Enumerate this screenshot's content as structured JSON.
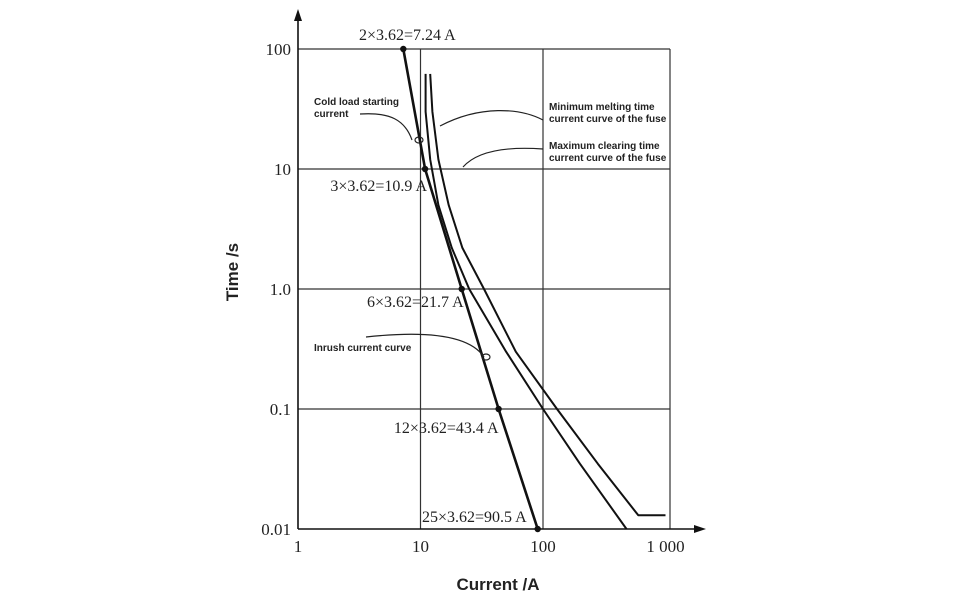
{
  "chart_data": {
    "type": "line",
    "xlabel": "Current /A",
    "ylabel": "Time /s",
    "x_scale": "log",
    "y_scale": "log",
    "xlim": [
      1,
      1000
    ],
    "ylim": [
      0.01,
      100
    ],
    "grid": true,
    "x_ticks": [
      "1",
      "10",
      "100",
      "1 000"
    ],
    "y_ticks": [
      "100",
      "10",
      "1.0",
      "0.1",
      "0.01"
    ],
    "series": [
      {
        "name": "Inrush current curve",
        "x": [
          7.24,
          10.9,
          21.7,
          43.4,
          90.5
        ],
        "y": [
          100,
          10,
          1.0,
          0.1,
          0.01
        ]
      },
      {
        "name": "Minimum melting time current curve of the fuse",
        "x": [
          11,
          11,
          12,
          14,
          18,
          25,
          50,
          100,
          200,
          480
        ],
        "y": [
          62,
          30,
          12,
          5,
          2.2,
          1.0,
          0.3,
          0.1,
          0.035,
          0.01
        ]
      },
      {
        "name": "Maximum clearing time current curve of the fuse",
        "x": [
          12,
          12.5,
          14,
          17,
          22,
          33,
          60,
          130,
          280,
          600,
          1000
        ],
        "y": [
          62,
          30,
          12,
          5,
          2.2,
          1.0,
          0.3,
          0.1,
          0.035,
          0.013,
          0.013
        ]
      }
    ],
    "points": [
      {
        "x": 7.24,
        "y": 100,
        "label": "2×3.62=7.24 A"
      },
      {
        "x": 10.9,
        "y": 10,
        "label": "3×3.62=10.9 A"
      },
      {
        "x": 21.7,
        "y": 1.0,
        "label": "6×3.62=21.7 A"
      },
      {
        "x": 43.4,
        "y": 0.1,
        "label": "12×3.62=43.4 A"
      },
      {
        "x": 90.5,
        "y": 0.01,
        "label": "25×3.62=90.5 A"
      }
    ],
    "annotations": [
      {
        "text": [
          "Cold load starting",
          "current"
        ],
        "target_x": 10.5,
        "target_y": 17
      },
      {
        "text": [
          "Inrush current curve"
        ],
        "target_x": 34,
        "target_y": 0.27
      },
      {
        "text": [
          "Minimum melting time",
          "current curve of the fuse"
        ],
        "target_x": 13.5,
        "target_y": 12
      },
      {
        "text": [
          "Maximum clearing time",
          "current curve of the fuse"
        ],
        "target_x": 22,
        "target_y": 6.5
      }
    ]
  }
}
